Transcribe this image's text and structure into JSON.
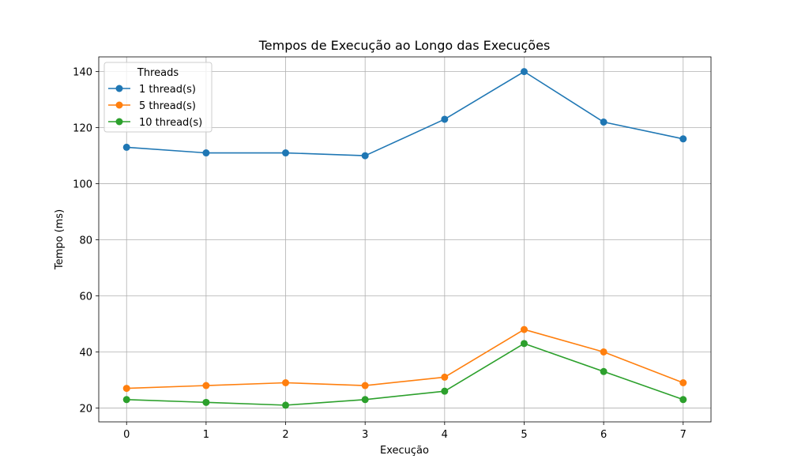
{
  "chart_data": {
    "type": "line",
    "title": "Tempos de Execução ao Longo das Execuções",
    "xlabel": "Execução",
    "ylabel": "Tempo (ms)",
    "x": [
      0,
      1,
      2,
      3,
      4,
      5,
      6,
      7
    ],
    "xlim": [
      -0.35,
      7.35
    ],
    "ylim": [
      15.05,
      145.25
    ],
    "yticks": [
      20,
      40,
      60,
      80,
      100,
      120,
      140
    ],
    "grid": true,
    "legend": {
      "title": "Threads",
      "placement": "top-left"
    },
    "series": [
      {
        "name": "1 thread(s)",
        "color": "#1f77b4",
        "values": [
          113,
          111,
          111,
          110,
          123,
          140,
          122,
          116
        ]
      },
      {
        "name": "5 thread(s)",
        "color": "#ff7f0e",
        "values": [
          27,
          28,
          29,
          28,
          31,
          48,
          40,
          29
        ]
      },
      {
        "name": "10 thread(s)",
        "color": "#2ca02c",
        "values": [
          23,
          22,
          21,
          23,
          26,
          43,
          33,
          23
        ]
      }
    ]
  }
}
